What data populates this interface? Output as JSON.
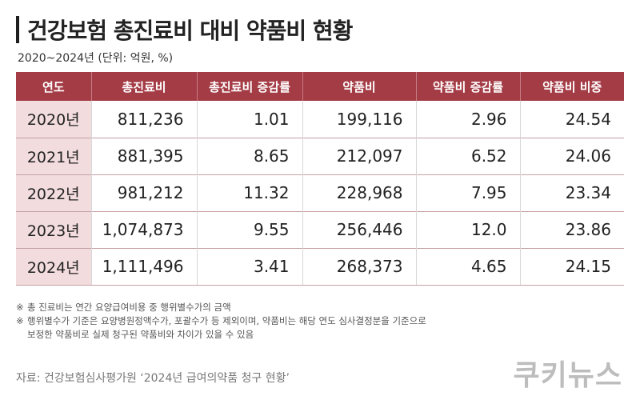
{
  "header": {
    "title": "건강보험 총진료비 대비 약품비 현황",
    "subtitle": "2020~2024년 (단위: 억원, %)"
  },
  "table": {
    "columns": [
      "연도",
      "총진료비",
      "총진료비 증감률",
      "약품비",
      "약품비 증감률",
      "약품비 비중"
    ],
    "rows": [
      [
        "2020년",
        "811,236",
        "1.01",
        "199,116",
        "2.96",
        "24.54"
      ],
      [
        "2021년",
        "881,395",
        "8.65",
        "212,097",
        "6.52",
        "24.06"
      ],
      [
        "2022년",
        "981,212",
        "11.32",
        "228,968",
        "7.95",
        "23.34"
      ],
      [
        "2023년",
        "1,074,873",
        "9.55",
        "256,446",
        "12.0",
        "23.86"
      ],
      [
        "2024년",
        "1,111,496",
        "3.41",
        "268,373",
        "4.65",
        "24.15"
      ]
    ]
  },
  "notes": {
    "mark": "※",
    "note1": "총 진료비는 연간 요양급여비용 중 행위별수가의 금액",
    "note2_line1": "행위별수가 기준은 요양병원정액수가, 포괄수가 등 제외이며, 약품비는 해당 연도 심사결정분을 기준으로",
    "note2_line2": "보정한 약품비로 실제 청구된 약품비와 차이가 있을 수 있음"
  },
  "footer": {
    "source": "자료: 건강보험심사평가원 ‘2024년 급여의약품 청구 현황’",
    "brand": "쿠키뉴스"
  },
  "colors": {
    "header_bg": "#a43c46",
    "year_bg": "#f2dcde"
  }
}
